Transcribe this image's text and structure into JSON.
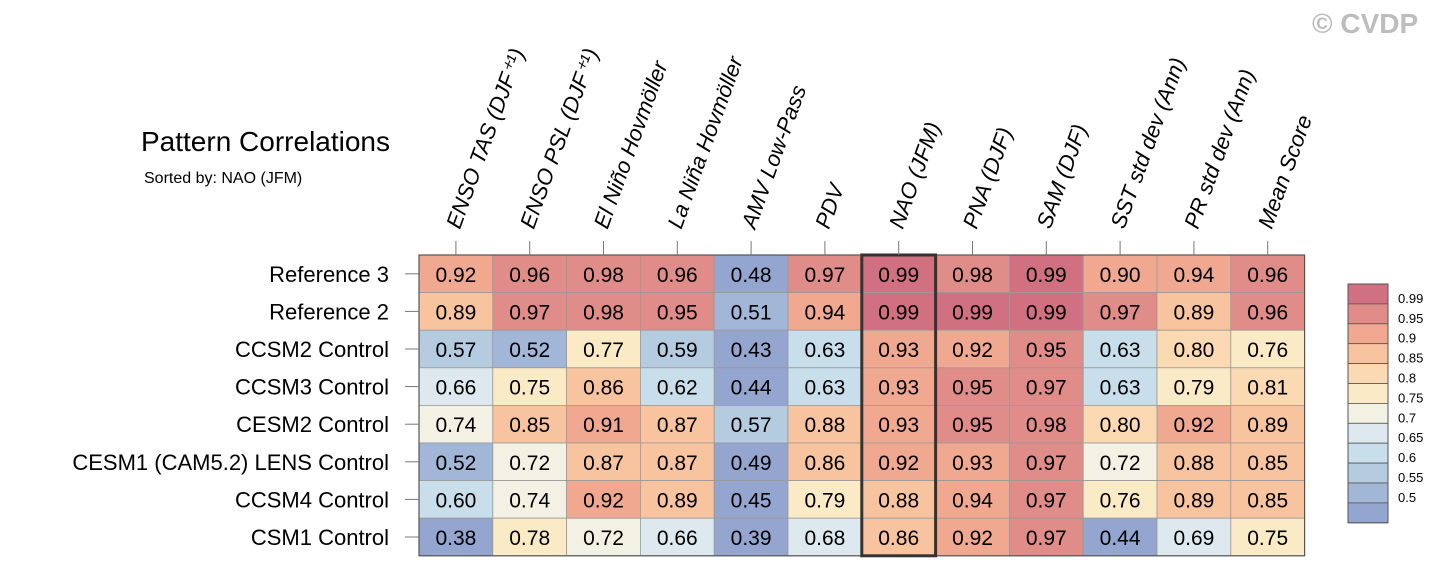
{
  "header": {
    "title": "Pattern Correlations",
    "subtitle": "Sorted by: NAO (JFM)",
    "copyright": "© CVDP"
  },
  "chart_data": {
    "type": "heatmap",
    "title": "Pattern Correlations",
    "subtitle": "Sorted by: NAO (JFM)",
    "highlighted_column": "NAO (JFM)",
    "columns": [
      "ENSO TAS (DJF⁺¹)",
      "ENSO PSL (DJF⁺¹)",
      "El Niño Hovmöller",
      "La Niña Hovmöller",
      "AMV Low-Pass",
      "PDV",
      "NAO (JFM)",
      "PNA (DJF)",
      "SAM (DJF)",
      "SST std dev (Ann)",
      "PR std dev (Ann)",
      "Mean Score"
    ],
    "rows": [
      "Reference 3",
      "Reference 2",
      "CCSM2 Control",
      "CCSM3 Control",
      "CESM2 Control",
      "CESM1 (CAM5.2) LENS Control",
      "CCSM4 Control",
      "CSM1 Control"
    ],
    "values": [
      [
        "0.92",
        "0.96",
        "0.98",
        "0.96",
        "0.48",
        "0.97",
        "0.99",
        "0.98",
        "0.99",
        "0.90",
        "0.94",
        "0.96"
      ],
      [
        "0.89",
        "0.97",
        "0.98",
        "0.95",
        "0.51",
        "0.94",
        "0.99",
        "0.99",
        "0.99",
        "0.97",
        "0.89",
        "0.96"
      ],
      [
        "0.57",
        "0.52",
        "0.77",
        "0.59",
        "0.43",
        "0.63",
        "0.93",
        "0.92",
        "0.95",
        "0.63",
        "0.80",
        "0.76"
      ],
      [
        "0.66",
        "0.75",
        "0.86",
        "0.62",
        "0.44",
        "0.63",
        "0.93",
        "0.95",
        "0.97",
        "0.63",
        "0.79",
        "0.81"
      ],
      [
        "0.74",
        "0.85",
        "0.91",
        "0.87",
        "0.57",
        "0.88",
        "0.93",
        "0.95",
        "0.98",
        "0.80",
        "0.92",
        "0.89"
      ],
      [
        "0.52",
        "0.72",
        "0.87",
        "0.87",
        "0.49",
        "0.86",
        "0.92",
        "0.93",
        "0.97",
        "0.72",
        "0.88",
        "0.85"
      ],
      [
        "0.60",
        "0.74",
        "0.92",
        "0.89",
        "0.45",
        "0.79",
        "0.88",
        "0.94",
        "0.97",
        "0.76",
        "0.89",
        "0.85"
      ],
      [
        "0.38",
        "0.78",
        "0.72",
        "0.66",
        "0.39",
        "0.68",
        "0.86",
        "0.92",
        "0.97",
        "0.44",
        "0.69",
        "0.75"
      ]
    ],
    "colorbar": {
      "labels": [
        "0.99",
        "0.95",
        "0.9",
        "0.85",
        "0.8",
        "0.75",
        "0.7",
        "0.65",
        "0.6",
        "0.55",
        "0.5"
      ],
      "thresholds": [
        0.99,
        0.95,
        0.9,
        0.85,
        0.8,
        0.75,
        0.7,
        0.65,
        0.6,
        0.55,
        0.5
      ],
      "colors": [
        "#d17080",
        "#e08c88",
        "#f0a890",
        "#f8c4a0",
        "#fbd9b3",
        "#fbeac6",
        "#f2f1e4",
        "#dde9ee",
        "#c8deeb",
        "#b4cbe0",
        "#a2b6d7",
        "#94a5cf"
      ]
    },
    "legend_position": "right"
  }
}
